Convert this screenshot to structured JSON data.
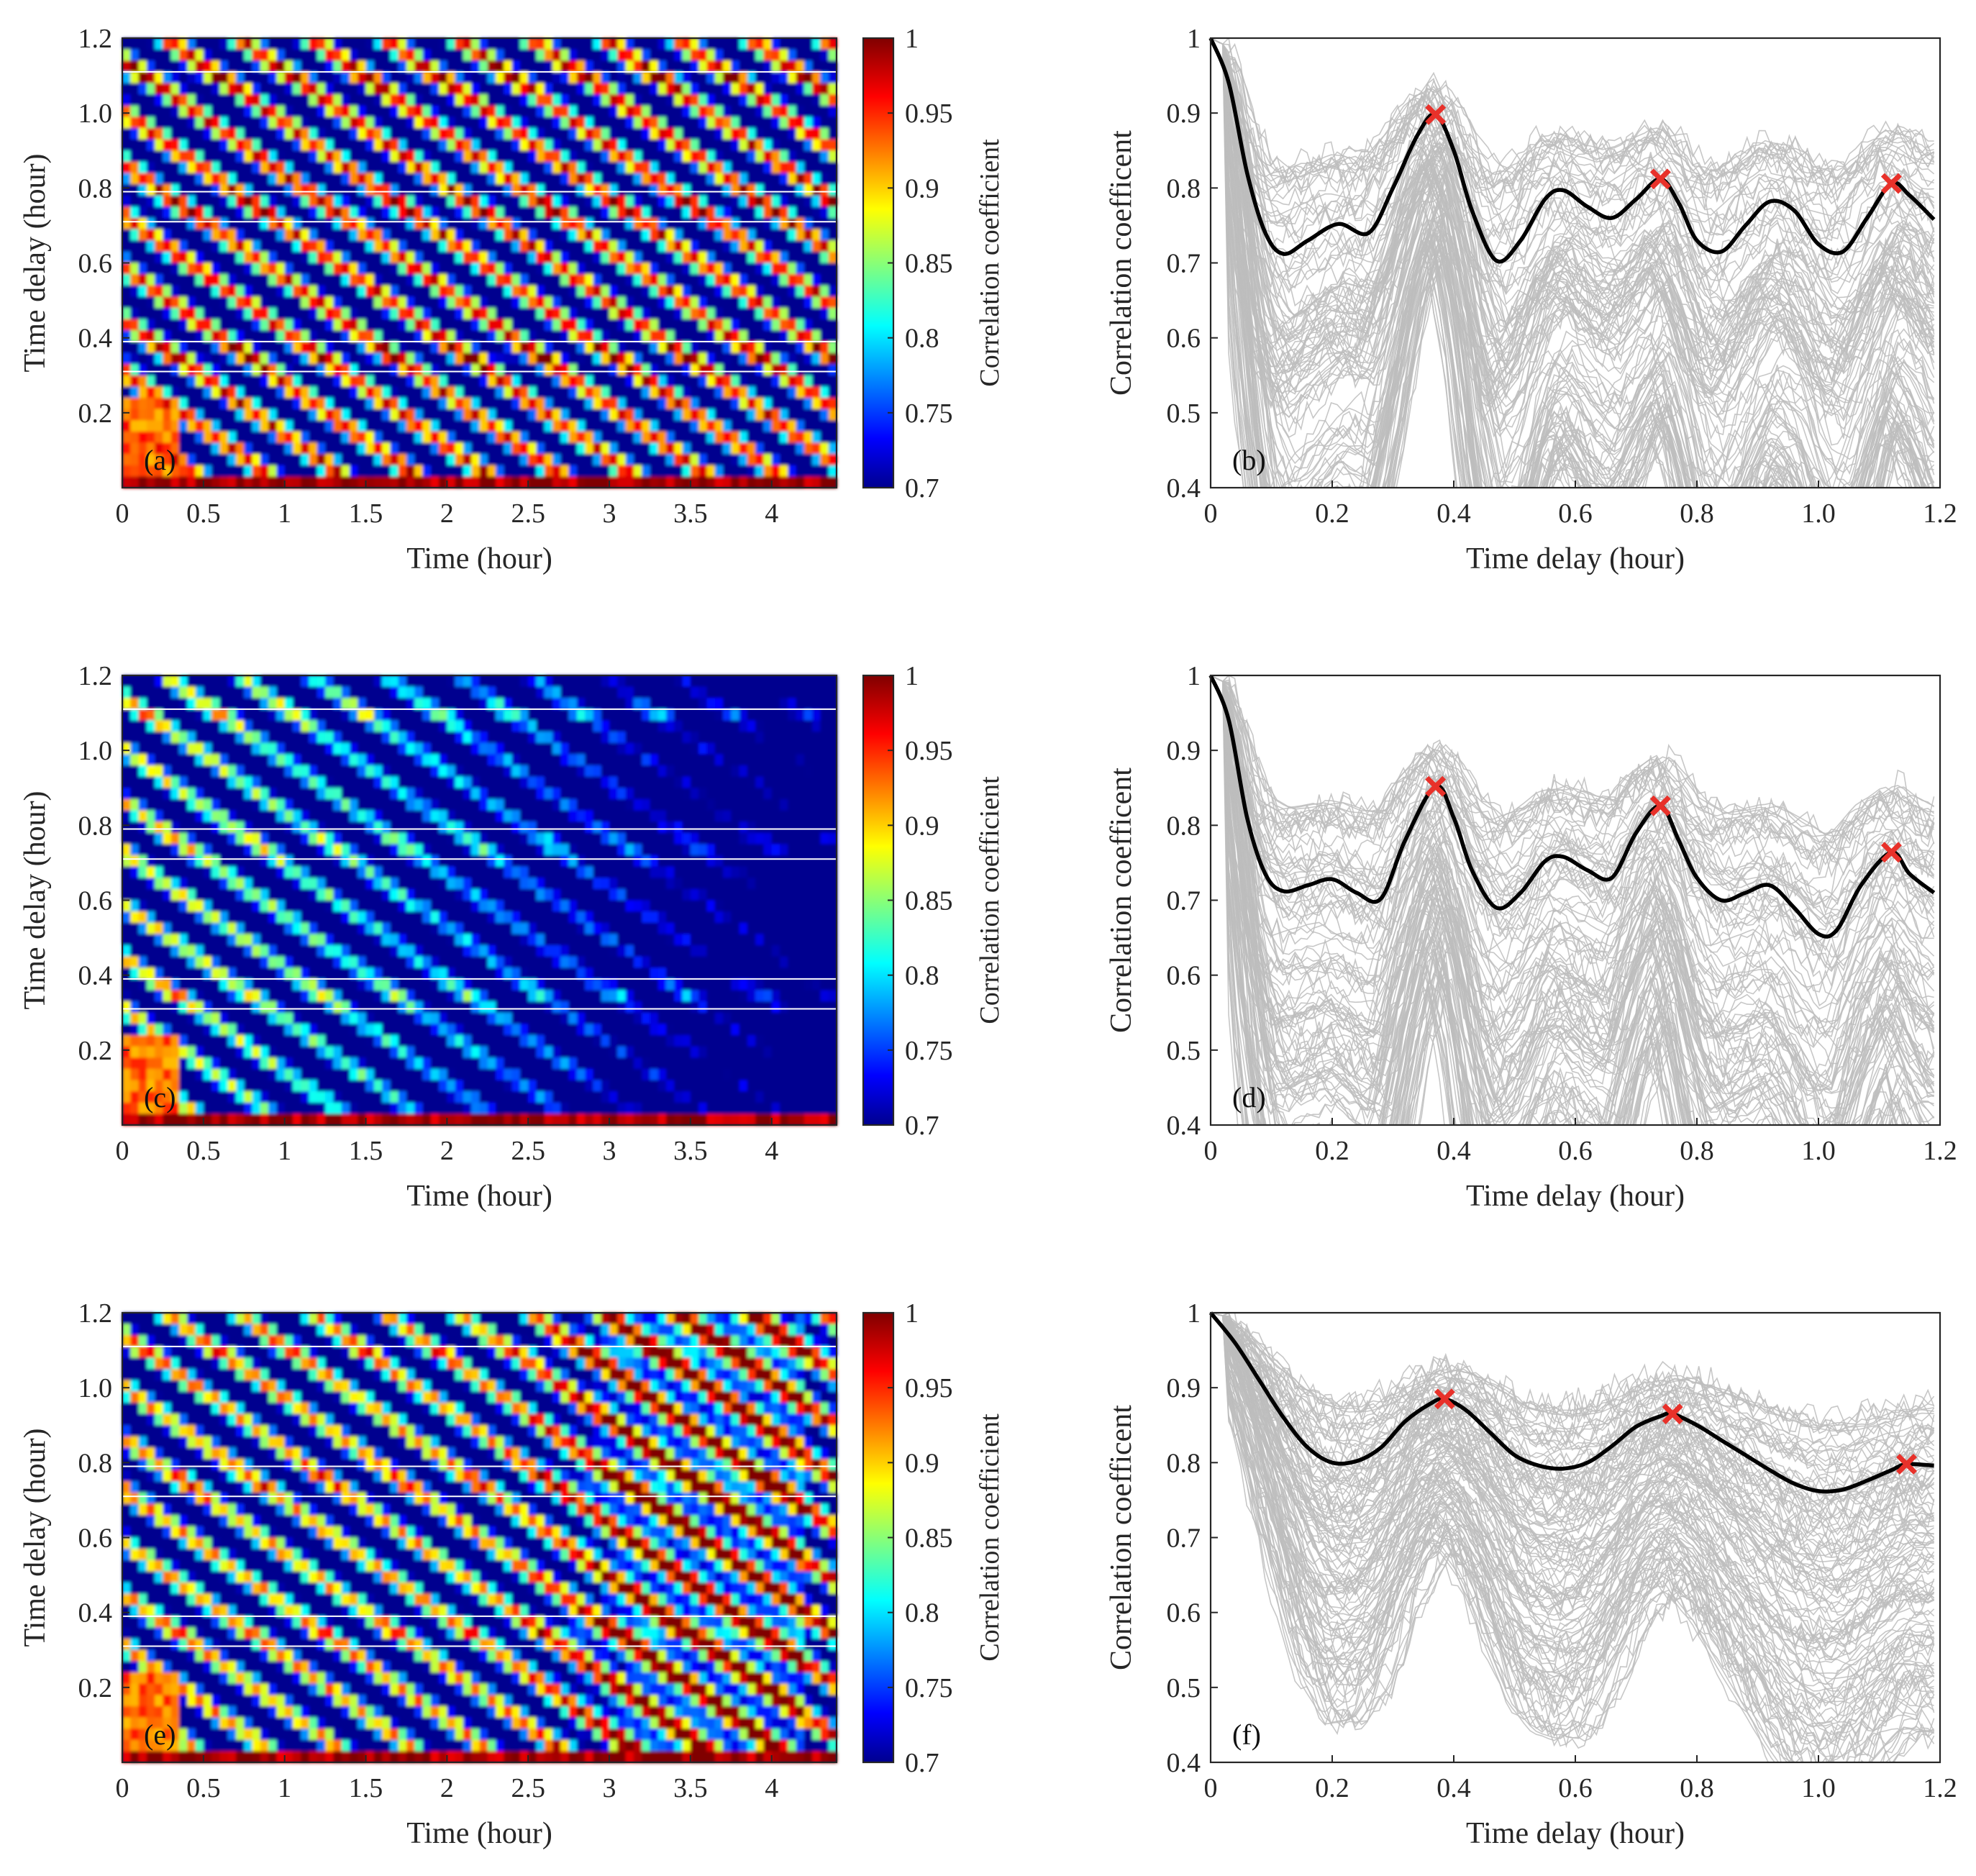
{
  "chart_data": [
    {
      "type": "heatmap",
      "panel": "(a)",
      "xlabel": "Time (hour)",
      "ylabel": "Time delay (hour)",
      "xticks": [
        "0",
        "0.5",
        "1",
        "1.5",
        "2",
        "2.5",
        "3",
        "3.5",
        "4"
      ],
      "yticks": [
        "0.2",
        "0.4",
        "0.6",
        "0.8",
        "1.0",
        "1.2"
      ],
      "xlim": [
        0,
        4.4
      ],
      "ylim": [
        0,
        1.2
      ],
      "colorbar": {
        "label": "Correlation coefficient",
        "ticks": [
          "0.7",
          "0.75",
          "0.8",
          "0.85",
          "0.9",
          "0.95",
          "1"
        ],
        "range": [
          0.7,
          1
        ]
      },
      "guide_lines_y": [
        0.31,
        0.39,
        0.71,
        0.79,
        1.11
      ]
    },
    {
      "type": "line",
      "panel": "(b)",
      "xlabel": "Time delay (hour)",
      "ylabel": "Correlation coefficent",
      "xticks": [
        "0",
        "0.2",
        "0.4",
        "0.6",
        "0.8",
        "1.0",
        "1.2"
      ],
      "yticks": [
        "0.4",
        "0.5",
        "0.6",
        "0.7",
        "0.8",
        "0.9",
        "1"
      ],
      "xlim": [
        0,
        1.2
      ],
      "ylim": [
        0.4,
        1
      ],
      "mean_curve": {
        "x": [
          0.0,
          0.03,
          0.06,
          0.09,
          0.12,
          0.16,
          0.21,
          0.26,
          0.3,
          0.34,
          0.37,
          0.4,
          0.43,
          0.47,
          0.51,
          0.55,
          0.58,
          0.62,
          0.66,
          0.7,
          0.74,
          0.77,
          0.8,
          0.84,
          0.88,
          0.92,
          0.96,
          1.0,
          1.04,
          1.08,
          1.12,
          1.15,
          1.19
        ],
        "y": [
          1.0,
          0.94,
          0.82,
          0.74,
          0.712,
          0.73,
          0.752,
          0.74,
          0.8,
          0.87,
          0.898,
          0.85,
          0.77,
          0.703,
          0.73,
          0.785,
          0.797,
          0.775,
          0.76,
          0.785,
          0.812,
          0.78,
          0.73,
          0.715,
          0.75,
          0.782,
          0.77,
          0.725,
          0.715,
          0.76,
          0.806,
          0.79,
          0.758
        ]
      },
      "peaks": [
        {
          "x": 0.37,
          "y": 0.898
        },
        {
          "x": 0.74,
          "y": 0.812
        },
        {
          "x": 1.12,
          "y": 0.806
        }
      ]
    },
    {
      "type": "heatmap",
      "panel": "(c)",
      "xlabel": "Time (hour)",
      "ylabel": "Time delay (hour)",
      "xticks": [
        "0",
        "0.5",
        "1",
        "1.5",
        "2",
        "2.5",
        "3",
        "3.5",
        "4"
      ],
      "yticks": [
        "0.2",
        "0.4",
        "0.6",
        "0.8",
        "1.0",
        "1.2"
      ],
      "xlim": [
        0,
        4.4
      ],
      "ylim": [
        0,
        1.2
      ],
      "colorbar": {
        "label": "Correlation coefficient",
        "ticks": [
          "0.7",
          "0.75",
          "0.8",
          "0.85",
          "0.9",
          "0.95",
          "1"
        ],
        "range": [
          0.7,
          1
        ]
      },
      "guide_lines_y": [
        0.31,
        0.39,
        0.71,
        0.79,
        1.11
      ]
    },
    {
      "type": "line",
      "panel": "(d)",
      "xlabel": "Time delay (hour)",
      "ylabel": "Correlation coefficent",
      "xticks": [
        "0",
        "0.2",
        "0.4",
        "0.6",
        "0.8",
        "1.0",
        "1.2"
      ],
      "yticks": [
        "0.4",
        "0.5",
        "0.6",
        "0.7",
        "0.8",
        "0.9",
        "1"
      ],
      "xlim": [
        0,
        1.2
      ],
      "ylim": [
        0.4,
        1
      ],
      "mean_curve": {
        "x": [
          0.0,
          0.03,
          0.06,
          0.09,
          0.12,
          0.16,
          0.2,
          0.24,
          0.28,
          0.32,
          0.37,
          0.4,
          0.43,
          0.47,
          0.51,
          0.55,
          0.58,
          0.62,
          0.66,
          0.7,
          0.74,
          0.77,
          0.8,
          0.84,
          0.88,
          0.92,
          0.96,
          1.0,
          1.03,
          1.07,
          1.12,
          1.15,
          1.19
        ],
        "y": [
          1.0,
          0.94,
          0.81,
          0.735,
          0.712,
          0.72,
          0.728,
          0.71,
          0.702,
          0.78,
          0.852,
          0.81,
          0.74,
          0.69,
          0.71,
          0.752,
          0.758,
          0.74,
          0.73,
          0.79,
          0.826,
          0.78,
          0.73,
          0.7,
          0.71,
          0.72,
          0.69,
          0.655,
          0.66,
          0.72,
          0.764,
          0.735,
          0.71
        ]
      },
      "peaks": [
        {
          "x": 0.37,
          "y": 0.852
        },
        {
          "x": 0.74,
          "y": 0.826
        },
        {
          "x": 1.12,
          "y": 0.764
        }
      ]
    },
    {
      "type": "heatmap",
      "panel": "(e)",
      "xlabel": "Time (hour)",
      "ylabel": "Time delay (hour)",
      "xticks": [
        "0",
        "0.5",
        "1",
        "1.5",
        "2",
        "2.5",
        "3",
        "3.5",
        "4"
      ],
      "yticks": [
        "0.2",
        "0.4",
        "0.6",
        "0.8",
        "1.0",
        "1.2"
      ],
      "xlim": [
        0,
        4.4
      ],
      "ylim": [
        0,
        1.2
      ],
      "colorbar": {
        "label": "Correlation coefficient",
        "ticks": [
          "0.7",
          "0.75",
          "0.8",
          "0.85",
          "0.9",
          "0.95",
          "1"
        ],
        "range": [
          0.7,
          1
        ]
      },
      "guide_lines_y": [
        0.31,
        0.39,
        0.71,
        0.79,
        1.11
      ]
    },
    {
      "type": "line",
      "panel": "(f)",
      "xlabel": "Time delay (hour)",
      "ylabel": "Correlation coefficent",
      "xticks": [
        "0",
        "0.2",
        "0.4",
        "0.6",
        "0.8",
        "1.0",
        "1.2"
      ],
      "yticks": [
        "0.4",
        "0.5",
        "0.6",
        "0.7",
        "0.8",
        "0.9",
        "1"
      ],
      "xlim": [
        0,
        1.2
      ],
      "ylim": [
        0.4,
        1
      ],
      "mean_curve": {
        "x": [
          0.0,
          0.04,
          0.08,
          0.12,
          0.16,
          0.2,
          0.24,
          0.28,
          0.32,
          0.36,
          0.385,
          0.42,
          0.46,
          0.5,
          0.54,
          0.58,
          0.62,
          0.66,
          0.7,
          0.74,
          0.76,
          0.8,
          0.84,
          0.88,
          0.92,
          0.96,
          1.0,
          1.04,
          1.08,
          1.12,
          1.145,
          1.19
        ],
        "y": [
          1.0,
          0.96,
          0.91,
          0.86,
          0.82,
          0.8,
          0.802,
          0.82,
          0.855,
          0.878,
          0.885,
          0.87,
          0.84,
          0.81,
          0.796,
          0.792,
          0.8,
          0.822,
          0.848,
          0.862,
          0.865,
          0.85,
          0.83,
          0.81,
          0.79,
          0.772,
          0.762,
          0.764,
          0.776,
          0.79,
          0.798,
          0.796
        ]
      },
      "peaks": [
        {
          "x": 0.385,
          "y": 0.885
        },
        {
          "x": 0.76,
          "y": 0.865
        },
        {
          "x": 1.145,
          "y": 0.798
        }
      ]
    }
  ],
  "colors": {
    "mean_curve": "#000000",
    "ensemble": "#bdbdbd",
    "peak_marker": "#e8312a",
    "guide_line": "#ffffff"
  }
}
